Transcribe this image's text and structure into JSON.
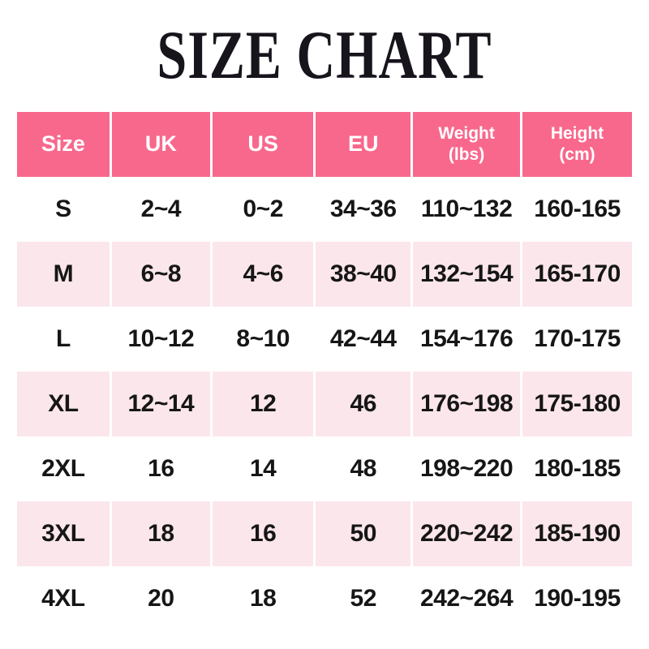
{
  "page": {
    "title": "SIZE CHART"
  },
  "colors": {
    "header_bg": "#f8688c",
    "header_text": "#ffffff",
    "row_bg": "#ffffff",
    "row_alt_bg": "#fbe6eb",
    "body_text": "#161616",
    "title_text": "#17141c",
    "divider": "#ffffff"
  },
  "chart_data": {
    "type": "table",
    "title": "SIZE CHART",
    "columns": [
      "Size",
      "UK",
      "US",
      "EU",
      "Weight\n(lbs)",
      "Height\n(cm)"
    ],
    "rows": [
      [
        "S",
        "2~4",
        "0~2",
        "34~36",
        "110~132",
        "160-165"
      ],
      [
        "M",
        "6~8",
        "4~6",
        "38~40",
        "132~154",
        "165-170"
      ],
      [
        "L",
        "10~12",
        "8~10",
        "42~44",
        "154~176",
        "170-175"
      ],
      [
        "XL",
        "12~14",
        "12",
        "46",
        "176~198",
        "175-180"
      ],
      [
        "2XL",
        "16",
        "14",
        "48",
        "198~220",
        "180-185"
      ],
      [
        "3XL",
        "18",
        "16",
        "50",
        "220~242",
        "185-190"
      ],
      [
        "4XL",
        "20",
        "18",
        "52",
        "242~264",
        "190-195"
      ]
    ],
    "layout_hints": {
      "header_style": "solid pink band, white bold text",
      "alternating_rows": [
        "white",
        "pale-pink"
      ],
      "grid": "white vertical dividers only"
    }
  }
}
